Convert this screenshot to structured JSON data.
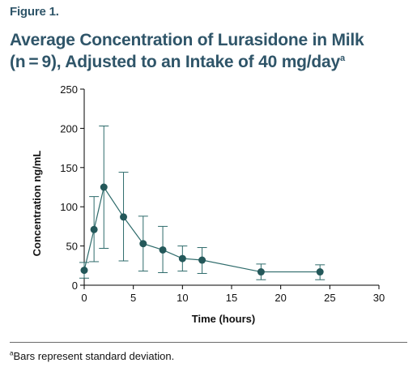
{
  "figure_label": "Figure 1.",
  "title": {
    "line1": "Average Concentration of Lurasidone in Milk",
    "line2": "(n = 9), Adjusted to an Intake of 40 mg/day",
    "superscript": "a"
  },
  "footnote": {
    "marker": "a",
    "text": "Bars represent standard deviation."
  },
  "colors": {
    "series": "#2e6b6b",
    "marker": "#24585a",
    "title": "#2f5569"
  },
  "chart_data": {
    "type": "scatter",
    "xlabel": "Time (hours)",
    "ylabel": "Concentration ng/mL",
    "xlim": [
      0,
      30
    ],
    "ylim": [
      0,
      250
    ],
    "xticks": [
      0,
      5,
      10,
      15,
      20,
      25,
      30
    ],
    "yticks": [
      0,
      50,
      100,
      150,
      200,
      250
    ],
    "grid": false,
    "series": [
      {
        "x": [
          0,
          1,
          2,
          4,
          6,
          8,
          10,
          12,
          18,
          24
        ],
        "y": [
          19,
          71,
          125,
          87,
          53,
          45,
          34,
          32,
          17,
          17
        ],
        "err_low": [
          9,
          30,
          47,
          31,
          18,
          16,
          18,
          15,
          7,
          7
        ],
        "err_high": [
          29,
          113,
          203,
          144,
          88,
          75,
          50,
          48,
          27,
          26
        ]
      }
    ]
  }
}
